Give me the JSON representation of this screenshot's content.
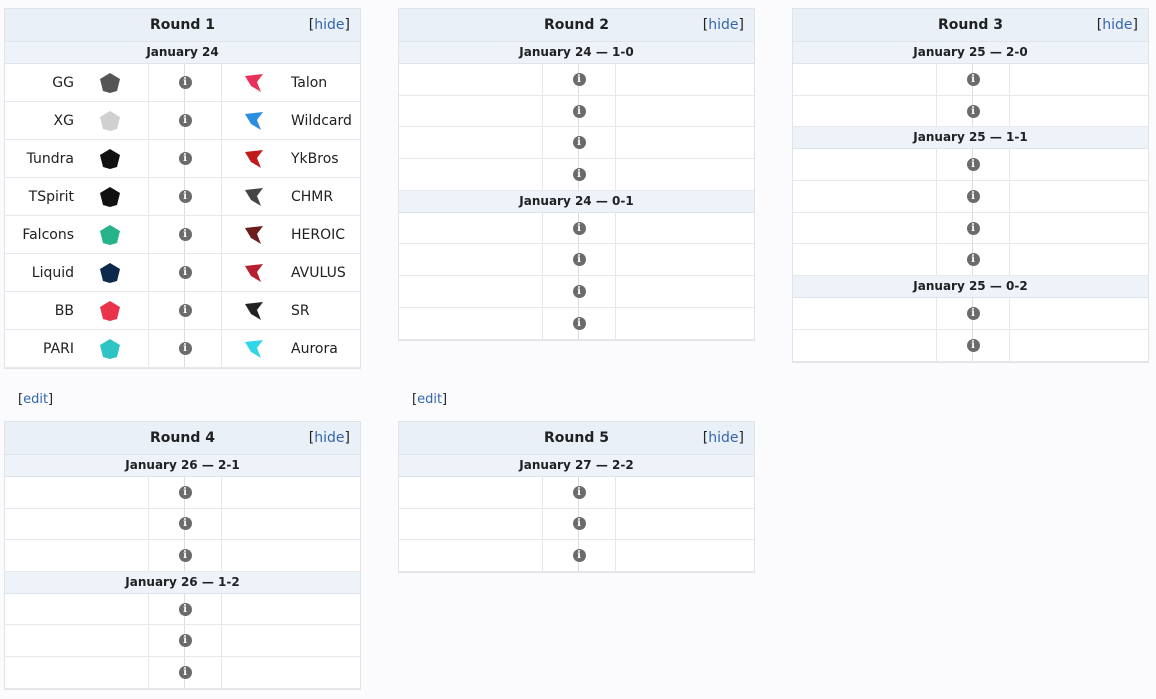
{
  "edit_label": "edit",
  "hide_label": "hide",
  "rounds": [
    {
      "title": "Round 1",
      "groups": [
        {
          "date": "January 24",
          "matches": [
            {
              "left": "GG",
              "right": "Talon",
              "left_logo_color": "#555555",
              "right_logo_color": "#e8325a"
            },
            {
              "left": "XG",
              "right": "Wildcard",
              "left_logo_color": "#d0d0d0",
              "right_logo_color": "#2a8fe0"
            },
            {
              "left": "Tundra",
              "right": "YkBros",
              "left_logo_color": "#111111",
              "right_logo_color": "#c01a1a"
            },
            {
              "left": "TSpirit",
              "right": "CHMR",
              "left_logo_color": "#111111",
              "right_logo_color": "#444444"
            },
            {
              "left": "Falcons",
              "right": "HEROIC",
              "left_logo_color": "#27b38a",
              "right_logo_color": "#6b1c1c"
            },
            {
              "left": "Liquid",
              "right": "AVULUS",
              "left_logo_color": "#0e2a4a",
              "right_logo_color": "#b51f2e"
            },
            {
              "left": "BB",
              "right": "SR",
              "left_logo_color": "#e8334a",
              "right_logo_color": "#222222"
            },
            {
              "left": "PARI",
              "right": "Aurora",
              "left_logo_color": "#2ec4c4",
              "right_logo_color": "#2fd5e8"
            }
          ]
        }
      ]
    },
    {
      "title": "Round 2",
      "groups": [
        {
          "date": "January 24 — 1-0",
          "count": 4
        },
        {
          "date": "January 24 — 0-1",
          "count": 4
        }
      ]
    },
    {
      "title": "Round 3",
      "groups": [
        {
          "date": "January 25 — 2-0",
          "count": 2
        },
        {
          "date": "January 25 — 1-1",
          "count": 4
        },
        {
          "date": "January 25 — 0-2",
          "count": 2
        }
      ]
    },
    {
      "title": "Round 4",
      "groups": [
        {
          "date": "January 26 — 2-1",
          "count": 3
        },
        {
          "date": "January 26 — 1-2",
          "count": 3
        }
      ]
    },
    {
      "title": "Round 5",
      "groups": [
        {
          "date": "January 27 — 2-2",
          "count": 3
        }
      ]
    }
  ]
}
